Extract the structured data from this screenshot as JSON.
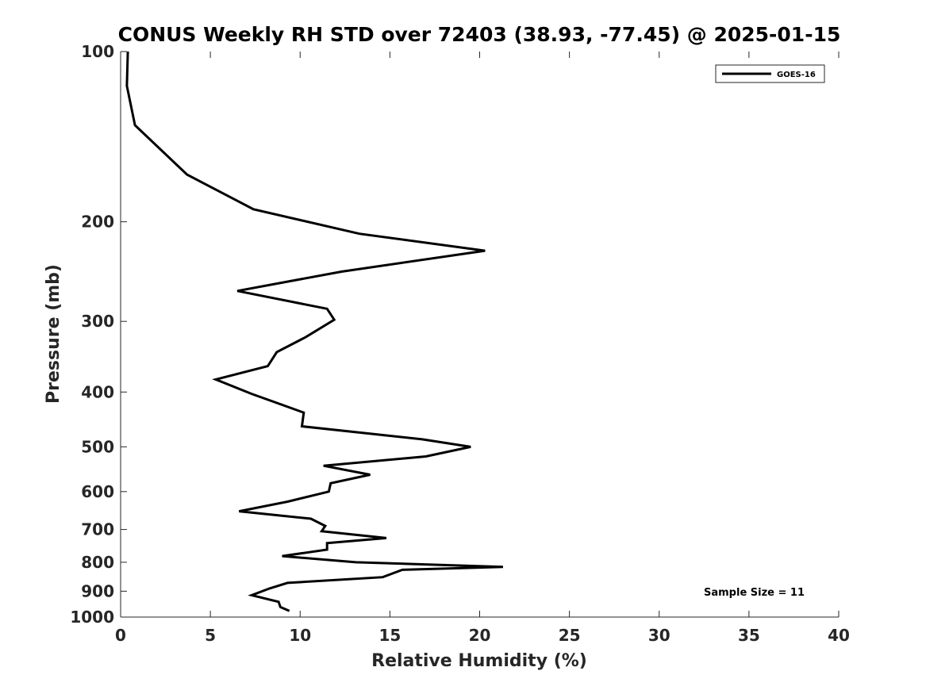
{
  "chart_data": {
    "type": "line",
    "title": "CONUS Weekly RH STD over 72403 (38.93, -77.45) @ 2025-01-15",
    "xlabel": "Relative Humidity (%)",
    "ylabel": "Pressure (mb)",
    "xlim": [
      0,
      40
    ],
    "ylim": [
      1000,
      100
    ],
    "y_scale": "log",
    "y_reversed": true,
    "x_ticks": [
      0,
      5,
      10,
      15,
      20,
      25,
      30,
      35,
      40
    ],
    "y_ticks": [
      100,
      200,
      300,
      400,
      500,
      600,
      700,
      800,
      900,
      1000
    ],
    "grid": false,
    "legend_position": "top-right",
    "series": [
      {
        "name": "GOES-16",
        "color": "#000000",
        "x": [
          0.4,
          0.35,
          0.8,
          3.7,
          7.4,
          13.3,
          20.3,
          12.3,
          6.5,
          11.5,
          11.9,
          10.3,
          8.7,
          8.2,
          5.3,
          7.3,
          10.2,
          10.1,
          16.8,
          19.5,
          17.0,
          11.3,
          13.9,
          11.7,
          11.6,
          9.3,
          6.6,
          10.6,
          11.4,
          11.2,
          14.8,
          11.5,
          11.5,
          9.0,
          13.1,
          21.3,
          15.7,
          14.6,
          9.3,
          8.3,
          7.3,
          8.8,
          8.9,
          9.4
        ],
        "y": [
          100,
          115,
          135,
          165,
          190,
          210,
          225,
          245,
          265,
          285,
          298,
          320,
          340,
          360,
          380,
          403,
          435,
          460,
          485,
          500,
          520,
          540,
          560,
          580,
          600,
          625,
          650,
          670,
          690,
          705,
          725,
          740,
          760,
          780,
          800,
          815,
          825,
          850,
          870,
          890,
          915,
          940,
          960,
          975
        ]
      }
    ],
    "annotation": "Sample Size = 11"
  }
}
